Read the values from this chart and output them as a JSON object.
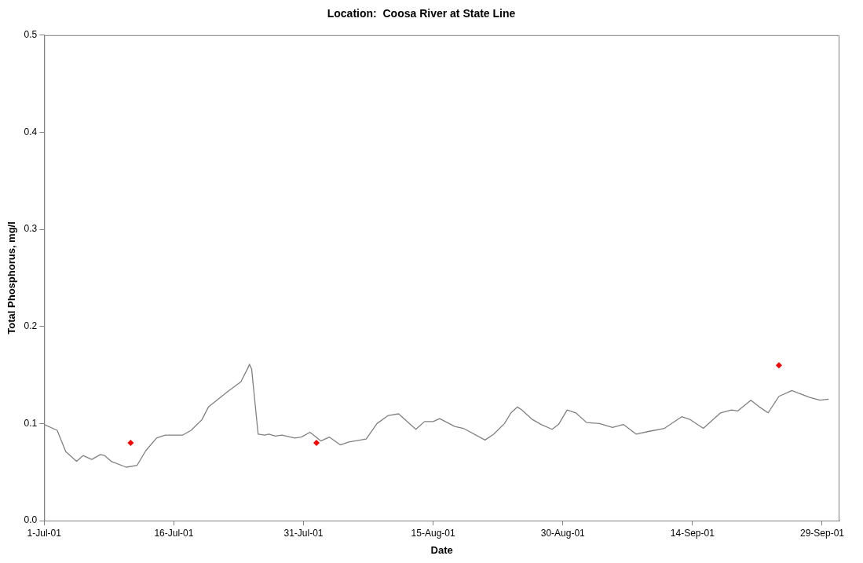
{
  "chart_data": {
    "type": "line",
    "title": "Location:  Coosa River at State Line",
    "xlabel": "Date",
    "ylabel": "Total Phosphorus, mg/l",
    "xlim": [
      "--07-01",
      "--10-01"
    ],
    "xticks": [
      {
        "value": "--07-01",
        "label": "1-Jul-01"
      },
      {
        "value": "--07-16",
        "label": "16-Jul-01"
      },
      {
        "value": "--07-31",
        "label": "31-Jul-01"
      },
      {
        "value": "--08-15",
        "label": "15-Aug-01"
      },
      {
        "value": "--08-30",
        "label": "30-Aug-01"
      },
      {
        "value": "--09-14",
        "label": "14-Sep-01"
      },
      {
        "value": "--09-29",
        "label": "29-Sep-01"
      }
    ],
    "ylim": [
      0,
      0.5
    ],
    "yticks": [
      {
        "value": 0,
        "label": "0.0"
      },
      0.1,
      0.2,
      0.3,
      0.4,
      0.5
    ],
    "grid": false,
    "legend": false,
    "series": [
      {
        "type": "line",
        "color": "#808080",
        "marker": "none",
        "line_style": "solid",
        "x": [
          "--07-01",
          "--07-02T12:00",
          "--07-03T12:00",
          "--07-04T18:00",
          "--07-05T12:00",
          "--07-06T12:00",
          "--07-07T12:00",
          "--07-08T00:00",
          "--07-08T18:00",
          "--07-10T12:00",
          "--07-11T18:00",
          "--07-12T18:00",
          "--07-14",
          "--07-15",
          "--07-17",
          "--07-18",
          "--07-19T06:00",
          "--07-20",
          "--07-21T06:00",
          "--07-22T06:00",
          "--07-23T18:00",
          "--07-24T12:00",
          "--07-24T18:00",
          "--07-25",
          "--07-25T18:00",
          "--07-26T12:00",
          "--07-27",
          "--07-27T18:00",
          "--07-28T12:00",
          "--07-30",
          "--07-30T18:00",
          "--07-31T18:00",
          "--08-02",
          "--08-03",
          "--08-04T06:00",
          "--08-05T06:00",
          "--08-07T06:00",
          "--08-08T12:00",
          "--08-09T18:00",
          "--08-11",
          "--08-13",
          "--08-14",
          "--08-15",
          "--08-15T18:00",
          "--08-17T12:00",
          "--08-18T12:00",
          "--08-21",
          "--08-22",
          "--08-23T06:00",
          "--08-24",
          "--08-24T18:00",
          "--08-25T06:00",
          "--08-26T12:00",
          "--08-27T12:00",
          "--08-28T18:00",
          "--08-29T12:00",
          "--08-30T12:00",
          "--08-31T12:00",
          "--09-01T18:00",
          "--09-03T06:00",
          "--09-04T18:00",
          "--09-06",
          "--09-07T12:00",
          "--09-09",
          "--09-10T18:00",
          "--09-12T18:00",
          "--09-13T18:00",
          "--09-15T06:00",
          "--09-17T06:00",
          "--09-18T12:00",
          "--09-19T06:00",
          "--09-20T18:00",
          "--09-21T18:00",
          "--09-22T18:00",
          "--09-24",
          "--09-25T12:00",
          "--09-27T12:00",
          "--09-28T18:00",
          "--09-29T18:00"
        ],
        "values": [
          0.099,
          0.093,
          0.071,
          0.061,
          0.067,
          0.063,
          0.068,
          0.067,
          0.061,
          0.055,
          0.057,
          0.072,
          0.085,
          0.088,
          0.088,
          0.093,
          0.104,
          0.117,
          0.126,
          0.133,
          0.143,
          0.156,
          0.161,
          0.156,
          0.089,
          0.088,
          0.089,
          0.087,
          0.088,
          0.085,
          0.086,
          0.091,
          0.082,
          0.086,
          0.078,
          0.081,
          0.084,
          0.1,
          0.108,
          0.11,
          0.094,
          0.102,
          0.102,
          0.105,
          0.097,
          0.095,
          0.083,
          0.089,
          0.1,
          0.111,
          0.117,
          0.114,
          0.104,
          0.099,
          0.094,
          0.099,
          0.114,
          0.111,
          0.101,
          0.1,
          0.096,
          0.099,
          0.089,
          0.092,
          0.095,
          0.107,
          0.104,
          0.095,
          0.111,
          0.114,
          0.113,
          0.124,
          0.117,
          0.111,
          0.128,
          0.134,
          0.127,
          0.124,
          0.125
        ]
      },
      {
        "type": "scatter",
        "color": "#ff0000",
        "marker": "diamond",
        "x": [
          "--07-11",
          "--08-01T12:00",
          "--09-24"
        ],
        "values": [
          0.08,
          0.08,
          0.16
        ]
      }
    ]
  }
}
